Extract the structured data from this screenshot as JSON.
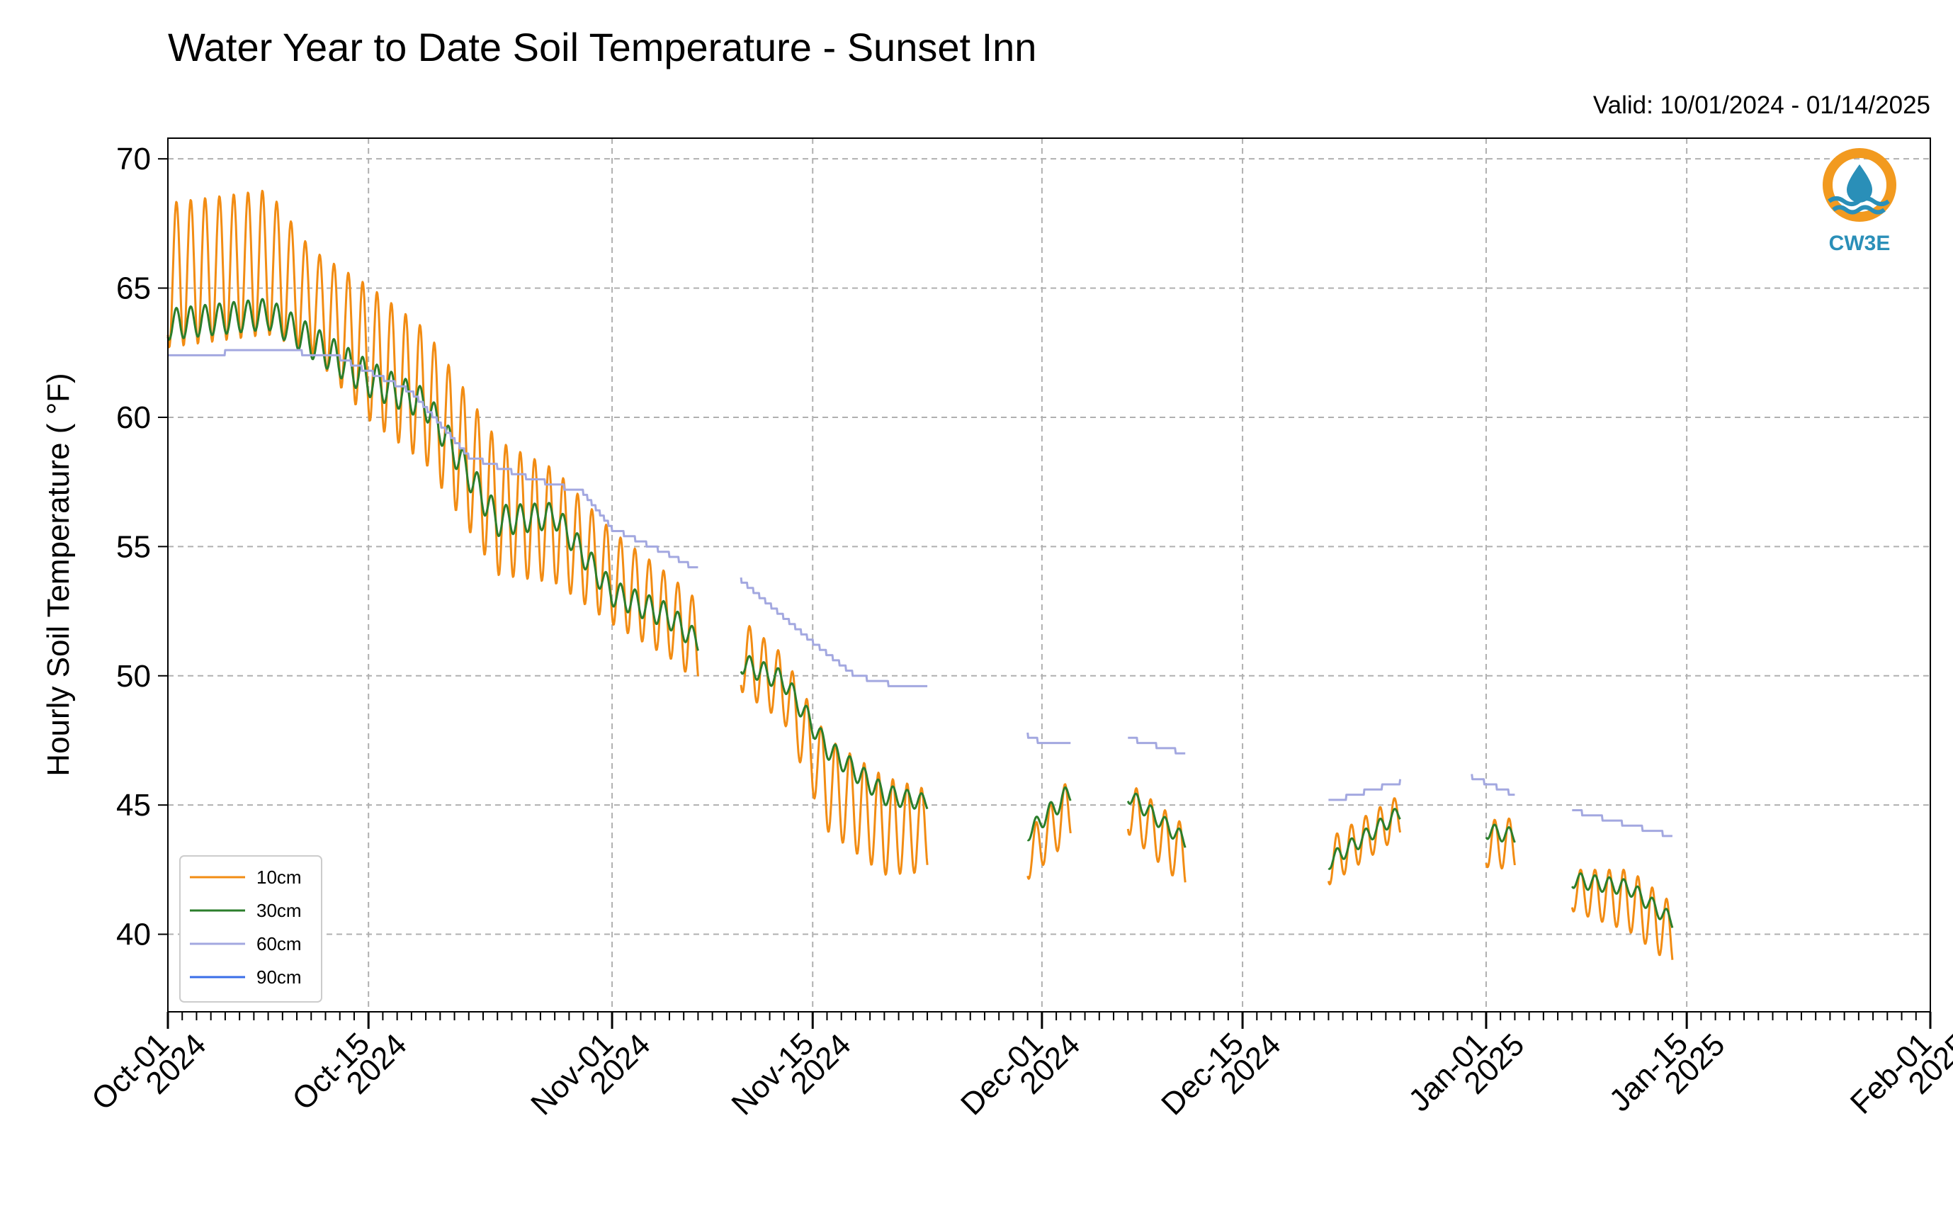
{
  "chart_data": {
    "type": "line",
    "title": "Water Year to Date Soil Temperature - Sunset Inn",
    "subtitle": "Valid: 10/01/2024 - 01/14/2025",
    "ylabel": "Hourly Soil Temperature ( °F)",
    "xlabel": "",
    "ylim": [
      37,
      70.8
    ],
    "xlim": [
      "2024-10-01",
      "2025-02-01"
    ],
    "yticks": [
      40,
      45,
      50,
      55,
      60,
      65,
      70
    ],
    "xticks": [
      {
        "date": "2024-10-01",
        "line1": "Oct-01",
        "line2": "2024"
      },
      {
        "date": "2024-10-15",
        "line1": "Oct-15",
        "line2": "2024"
      },
      {
        "date": "2024-11-01",
        "line1": "Nov-01",
        "line2": "2024"
      },
      {
        "date": "2024-11-15",
        "line1": "Nov-15",
        "line2": "2024"
      },
      {
        "date": "2024-12-01",
        "line1": "Dec-01",
        "line2": "2024"
      },
      {
        "date": "2024-12-15",
        "line1": "Dec-15",
        "line2": "2024"
      },
      {
        "date": "2025-01-01",
        "line1": "Jan-01",
        "line2": "2025"
      },
      {
        "date": "2025-01-15",
        "line1": "Jan-15",
        "line2": "2025"
      },
      {
        "date": "2025-02-01",
        "line1": "Feb-01",
        "line2": "2025"
      }
    ],
    "grid": true,
    "legend_position": "lower-left",
    "series": [
      {
        "name": "10cm",
        "color": "#f28c13",
        "note_pattern": "diurnal",
        "segments": [
          {
            "x": [
              "2024-10-01",
              "2024-10-08",
              "2024-10-11",
              "2024-10-15",
              "2024-10-19",
              "2024-10-24",
              "2024-10-28",
              "2024-11-01",
              "2024-11-05",
              "2024-11-07"
            ],
            "mean": [
              65.5,
              66.0,
              64.5,
              62.5,
              60.8,
              56.5,
              55.8,
              53.8,
              52.3,
              51.3
            ],
            "amp": [
              2.8,
              2.8,
              2.0,
              2.6,
              2.6,
              2.6,
              2.2,
              1.8,
              1.6,
              1.6
            ]
          },
          {
            "x": [
              "2024-11-10",
              "2024-11-13",
              "2024-11-16",
              "2024-11-20",
              "2024-11-23"
            ],
            "mean": [
              50.8,
              49.5,
              45.8,
              44.2,
              44.0
            ],
            "amp": [
              1.4,
              1.3,
              1.8,
              1.9,
              1.6
            ]
          },
          {
            "x": [
              "2024-11-30",
              "2024-12-03"
            ],
            "mean": [
              43.0,
              44.9
            ],
            "amp": [
              0.9,
              1.2
            ]
          },
          {
            "x": [
              "2024-12-07",
              "2024-12-11"
            ],
            "mean": [
              44.9,
              43.0
            ],
            "amp": [
              1.0,
              1.2
            ]
          },
          {
            "x": [
              "2024-12-21",
              "2024-12-26"
            ],
            "mean": [
              42.8,
              44.6
            ],
            "amp": [
              0.9,
              0.8
            ]
          },
          {
            "x": [
              "2025-01-01",
              "2025-01-03"
            ],
            "mean": [
              43.5,
              43.5
            ],
            "amp": [
              0.9,
              1.0
            ]
          },
          {
            "x": [
              "2025-01-07",
              "2025-01-11",
              "2025-01-14"
            ],
            "mean": [
              41.7,
              41.3,
              40.0
            ],
            "amp": [
              0.8,
              1.2,
              1.2
            ]
          }
        ]
      },
      {
        "name": "30cm",
        "color": "#2b7e2b",
        "note_pattern": "diurnal",
        "segments": [
          {
            "x": [
              "2024-10-01",
              "2024-10-08",
              "2024-10-15",
              "2024-10-19",
              "2024-10-24",
              "2024-10-28",
              "2024-11-01",
              "2024-11-05",
              "2024-11-07"
            ],
            "mean": [
              63.6,
              64.0,
              61.5,
              60.5,
              56.0,
              56.2,
              53.2,
              52.3,
              51.3
            ],
            "amp": [
              0.6,
              0.6,
              0.7,
              0.6,
              0.6,
              0.5,
              0.5,
              0.5,
              0.4
            ]
          },
          {
            "x": [
              "2024-11-10",
              "2024-11-13",
              "2024-11-16",
              "2024-11-20",
              "2024-11-23"
            ],
            "mean": [
              50.5,
              49.8,
              47.2,
              45.4,
              45.1
            ],
            "amp": [
              0.4,
              0.4,
              0.4,
              0.4,
              0.3
            ]
          },
          {
            "x": [
              "2024-11-30",
              "2024-12-03"
            ],
            "mean": [
              43.9,
              45.5
            ],
            "amp": [
              0.3,
              0.4
            ]
          },
          {
            "x": [
              "2024-12-07",
              "2024-12-11"
            ],
            "mean": [
              45.4,
              43.6
            ],
            "amp": [
              0.3,
              0.3
            ]
          },
          {
            "x": [
              "2024-12-21",
              "2024-12-26"
            ],
            "mean": [
              42.8,
              44.7
            ],
            "amp": [
              0.3,
              0.3
            ]
          },
          {
            "x": [
              "2025-01-01",
              "2025-01-03"
            ],
            "mean": [
              44.0,
              43.8
            ],
            "amp": [
              0.3,
              0.3
            ]
          },
          {
            "x": [
              "2025-01-07",
              "2025-01-11",
              "2025-01-14"
            ],
            "mean": [
              42.1,
              41.8,
              40.5
            ],
            "amp": [
              0.3,
              0.3,
              0.3
            ]
          }
        ]
      },
      {
        "name": "60cm",
        "color": "#a3a8e0",
        "note_pattern": "smooth",
        "segments": [
          {
            "x": [
              "2024-10-01",
              "2024-10-05",
              "2024-10-09",
              "2024-10-13",
              "2024-10-18",
              "2024-10-22",
              "2024-10-26",
              "2024-10-30",
              "2024-11-01",
              "2024-11-05",
              "2024-11-07"
            ],
            "mean": [
              62.3,
              62.5,
              62.6,
              62.3,
              61.0,
              58.5,
              57.7,
              57.1,
              55.7,
              54.7,
              54.1
            ]
          },
          {
            "x": [
              "2024-11-10",
              "2024-11-15",
              "2024-11-18",
              "2024-11-21",
              "2024-11-23"
            ],
            "mean": [
              53.7,
              51.3,
              50.0,
              49.6,
              49.5
            ]
          },
          {
            "x": [
              "2024-11-30",
              "2024-12-01",
              "2024-12-03"
            ],
            "mean": [
              47.7,
              47.4,
              47.4
            ]
          },
          {
            "x": [
              "2024-12-07",
              "2024-12-11"
            ],
            "mean": [
              47.6,
              47.0
            ]
          },
          {
            "x": [
              "2024-12-21",
              "2024-12-26"
            ],
            "mean": [
              45.1,
              45.9
            ]
          },
          {
            "x": [
              "2024-12-31",
              "2025-01-03"
            ],
            "mean": [
              46.1,
              45.4
            ]
          },
          {
            "x": [
              "2025-01-07",
              "2025-01-14"
            ],
            "mean": [
              44.8,
              43.8
            ]
          }
        ]
      },
      {
        "name": "90cm",
        "color": "#3a6ee8",
        "segments": []
      }
    ]
  },
  "logo": {
    "text": "CW3E",
    "ring_color": "#f29a1f",
    "wave_color": "#2a8fb8"
  }
}
